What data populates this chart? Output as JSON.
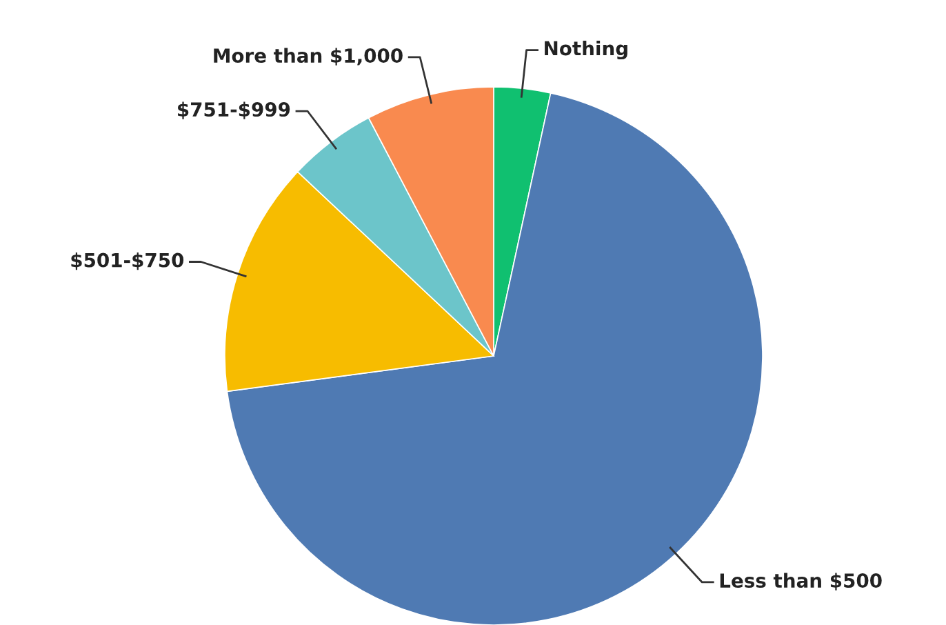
{
  "chart_data": {
    "type": "pie",
    "categories": [
      "Nothing",
      "Less than $500",
      "$501-$750",
      "$751-$999",
      "More than $1,000"
    ],
    "values": [
      3.4,
      69.5,
      14.1,
      5.3,
      7.7
    ],
    "colors": [
      "#10c070",
      "#4f7ab3",
      "#f7bc00",
      "#6cc5ca",
      "#f98a4f"
    ]
  }
}
